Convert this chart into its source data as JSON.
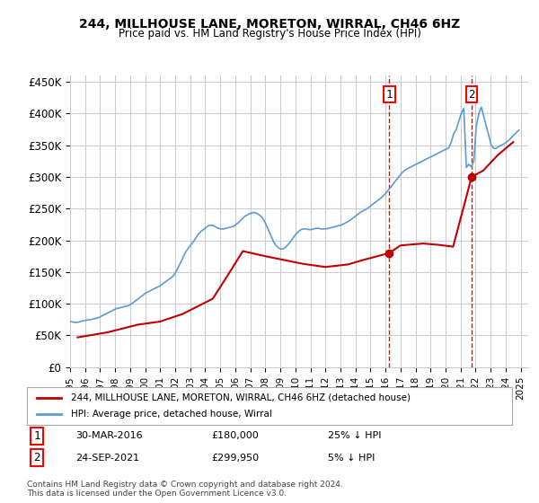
{
  "title": "244, MILLHOUSE LANE, MORETON, WIRRAL, CH46 6HZ",
  "subtitle": "Price paid vs. HM Land Registry's House Price Index (HPI)",
  "ylabel_ticks": [
    "£0",
    "£50K",
    "£100K",
    "£150K",
    "£200K",
    "£250K",
    "£300K",
    "£350K",
    "£400K",
    "£450K"
  ],
  "ytick_values": [
    0,
    50000,
    100000,
    150000,
    200000,
    250000,
    300000,
    350000,
    400000,
    450000
  ],
  "ylim": [
    0,
    460000
  ],
  "xlim_start": 1995.0,
  "xlim_end": 2025.5,
  "transaction1": {
    "date_num": 2016.25,
    "price": 180000,
    "label": "1",
    "date_str": "30-MAR-2016",
    "pct": "25% ↓ HPI"
  },
  "transaction2": {
    "date_num": 2021.73,
    "price": 299950,
    "label": "2",
    "date_str": "24-SEP-2021",
    "pct": "5% ↓ HPI"
  },
  "legend_line1": "244, MILLHOUSE LANE, MORETON, WIRRAL, CH46 6HZ (detached house)",
  "legend_line2": "HPI: Average price, detached house, Wirral",
  "footnote": "Contains HM Land Registry data © Crown copyright and database right 2024.\nThis data is licensed under the Open Government Licence v3.0.",
  "hpi_color": "#5b9bd5",
  "price_color": "#c00000",
  "vline_color": "#ff0000",
  "background_color": "#ffffff",
  "grid_color": "#cccccc",
  "hpi_data": {
    "years": [
      1995.04,
      1995.21,
      1995.38,
      1995.54,
      1995.71,
      1995.88,
      1996.04,
      1996.21,
      1996.38,
      1996.54,
      1996.71,
      1996.88,
      1997.04,
      1997.21,
      1997.38,
      1997.54,
      1997.71,
      1997.88,
      1998.04,
      1998.21,
      1998.38,
      1998.54,
      1998.71,
      1998.88,
      1999.04,
      1999.21,
      1999.38,
      1999.54,
      1999.71,
      1999.88,
      2000.04,
      2000.21,
      2000.38,
      2000.54,
      2000.71,
      2000.88,
      2001.04,
      2001.21,
      2001.38,
      2001.54,
      2001.71,
      2001.88,
      2002.04,
      2002.21,
      2002.38,
      2002.54,
      2002.71,
      2002.88,
      2003.04,
      2003.21,
      2003.38,
      2003.54,
      2003.71,
      2003.88,
      2004.04,
      2004.21,
      2004.38,
      2004.54,
      2004.71,
      2004.88,
      2005.04,
      2005.21,
      2005.38,
      2005.54,
      2005.71,
      2005.88,
      2006.04,
      2006.21,
      2006.38,
      2006.54,
      2006.71,
      2006.88,
      2007.04,
      2007.21,
      2007.38,
      2007.54,
      2007.71,
      2007.88,
      2008.04,
      2008.21,
      2008.38,
      2008.54,
      2008.71,
      2008.88,
      2009.04,
      2009.21,
      2009.38,
      2009.54,
      2009.71,
      2009.88,
      2010.04,
      2010.21,
      2010.38,
      2010.54,
      2010.71,
      2010.88,
      2011.04,
      2011.21,
      2011.38,
      2011.54,
      2011.71,
      2011.88,
      2012.04,
      2012.21,
      2012.38,
      2012.54,
      2012.71,
      2012.88,
      2013.04,
      2013.21,
      2013.38,
      2013.54,
      2013.71,
      2013.88,
      2014.04,
      2014.21,
      2014.38,
      2014.54,
      2014.71,
      2014.88,
      2015.04,
      2015.21,
      2015.38,
      2015.54,
      2015.71,
      2015.88,
      2016.04,
      2016.21,
      2016.38,
      2016.54,
      2016.71,
      2016.88,
      2017.04,
      2017.21,
      2017.38,
      2017.54,
      2017.71,
      2017.88,
      2018.04,
      2018.21,
      2018.38,
      2018.54,
      2018.71,
      2018.88,
      2019.04,
      2019.21,
      2019.38,
      2019.54,
      2019.71,
      2019.88,
      2020.04,
      2020.21,
      2020.38,
      2020.54,
      2020.71,
      2020.88,
      2021.04,
      2021.21,
      2021.38,
      2021.54,
      2021.71,
      2021.88,
      2022.04,
      2022.21,
      2022.38,
      2022.54,
      2022.71,
      2022.88,
      2023.04,
      2023.21,
      2023.38,
      2023.54,
      2023.71,
      2023.88,
      2024.04,
      2024.21,
      2024.38,
      2024.54,
      2024.71,
      2024.88
    ],
    "values": [
      72000,
      71000,
      70500,
      71000,
      72000,
      73000,
      74000,
      74500,
      75000,
      76000,
      77000,
      78000,
      80000,
      82000,
      84000,
      86000,
      88000,
      90000,
      92000,
      93000,
      94000,
      95000,
      96000,
      97000,
      99000,
      102000,
      105000,
      108000,
      111000,
      114000,
      117000,
      119000,
      121000,
      123000,
      125000,
      127000,
      129000,
      132000,
      135000,
      138000,
      141000,
      144000,
      150000,
      158000,
      166000,
      174000,
      182000,
      188000,
      193000,
      198000,
      204000,
      210000,
      214000,
      217000,
      220000,
      223000,
      224000,
      223000,
      221000,
      219000,
      218000,
      218000,
      219000,
      220000,
      221000,
      222000,
      225000,
      228000,
      232000,
      236000,
      239000,
      241000,
      243000,
      244000,
      243000,
      241000,
      238000,
      233000,
      225000,
      216000,
      207000,
      198000,
      192000,
      188000,
      186000,
      187000,
      190000,
      194000,
      199000,
      205000,
      210000,
      214000,
      217000,
      218000,
      218000,
      217000,
      217000,
      218000,
      219000,
      219000,
      218000,
      218000,
      218000,
      219000,
      220000,
      221000,
      222000,
      223000,
      224000,
      226000,
      228000,
      230000,
      233000,
      236000,
      239000,
      242000,
      245000,
      247000,
      249000,
      252000,
      255000,
      258000,
      261000,
      264000,
      267000,
      271000,
      275000,
      280000,
      285000,
      290000,
      295000,
      300000,
      305000,
      309000,
      312000,
      314000,
      316000,
      318000,
      320000,
      322000,
      324000,
      326000,
      328000,
      330000,
      332000,
      334000,
      336000,
      338000,
      340000,
      342000,
      344000,
      346000,
      355000,
      368000,
      375000,
      388000,
      400000,
      408000,
      315000,
      320000,
      316000,
      325000,
      380000,
      400000,
      410000,
      395000,
      380000,
      365000,
      350000,
      345000,
      345000,
      348000,
      350000,
      352000,
      355000,
      358000,
      362000,
      366000,
      370000,
      374000
    ]
  },
  "price_data": {
    "years": [
      1995.5,
      1996.5,
      1997.5,
      1999.5,
      2001.0,
      2002.5,
      2004.5,
      2005.5,
      2006.5,
      2008.0,
      2010.5,
      2012.0,
      2013.5,
      2014.5,
      2016.25,
      2017.0,
      2018.5,
      2019.5,
      2020.5,
      2021.73,
      2022.5,
      2023.5,
      2024.5
    ],
    "values": [
      47000,
      51000,
      55000,
      67000,
      72000,
      84000,
      108000,
      145000,
      183000,
      175000,
      163000,
      158000,
      162000,
      169000,
      180000,
      192000,
      195000,
      193000,
      190000,
      299950,
      310000,
      335000,
      355000
    ]
  },
  "xtick_years": [
    1995,
    1996,
    1997,
    1998,
    1999,
    2000,
    2001,
    2002,
    2003,
    2004,
    2005,
    2006,
    2007,
    2008,
    2009,
    2010,
    2011,
    2012,
    2013,
    2014,
    2015,
    2016,
    2017,
    2018,
    2019,
    2020,
    2021,
    2022,
    2023,
    2024,
    2025
  ]
}
